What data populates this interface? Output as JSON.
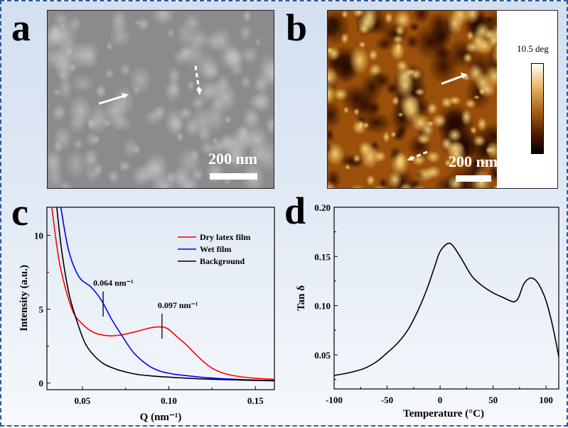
{
  "panels": {
    "a": {
      "label": "a",
      "scale_text": "200 nm"
    },
    "b": {
      "label": "b",
      "scale_text": "200 nm",
      "colorbar_label": "10.5 deg"
    },
    "c": {
      "label": "c"
    },
    "d": {
      "label": "d"
    }
  },
  "colors": {
    "border": "#2d5aa0",
    "dry": "#ff0000",
    "wet": "#0000ff",
    "background": "#000000"
  },
  "chart_data": [
    {
      "panel": "c",
      "type": "line",
      "xlabel": "Q (nm⁻¹)",
      "ylabel": "Intensity (a.u.)",
      "xlim": [
        0.0295,
        0.161
      ],
      "ylim": [
        -0.45,
        11.9
      ],
      "xticks": [
        0.05,
        0.1,
        0.15
      ],
      "xtick_labels": [
        "0.05",
        "0.10",
        "0.15"
      ],
      "yticks": [
        0,
        5,
        10
      ],
      "ytick_labels": [
        "0",
        "5",
        "10"
      ],
      "legend_position": "top-right",
      "series": [
        {
          "name": "Dry latex film",
          "color": "#ff0000",
          "x": [
            0.0322,
            0.037,
            0.044,
            0.05,
            0.057,
            0.065,
            0.072,
            0.08,
            0.088,
            0.094,
            0.099,
            0.105,
            0.11,
            0.115,
            0.12,
            0.125,
            0.132,
            0.14,
            0.15,
            0.161
          ],
          "y": [
            12,
            8,
            5,
            4,
            3.4,
            3.2,
            3.25,
            3.45,
            3.7,
            3.8,
            3.7,
            3.1,
            2.6,
            2.0,
            1.45,
            1.0,
            0.65,
            0.45,
            0.32,
            0.25
          ]
        },
        {
          "name": "Wet film",
          "color": "#0000ff",
          "x": [
            0.0374,
            0.042,
            0.048,
            0.055,
            0.061,
            0.067,
            0.074,
            0.08,
            0.088,
            0.095,
            0.103,
            0.11,
            0.12,
            0.13,
            0.145,
            0.161
          ],
          "y": [
            12,
            9,
            7.2,
            6.5,
            5.6,
            4.3,
            3.0,
            2.0,
            1.2,
            0.8,
            0.6,
            0.5,
            0.38,
            0.3,
            0.22,
            0.17
          ]
        },
        {
          "name": "Background",
          "color": "#000000",
          "x": [
            0.0351,
            0.038,
            0.042,
            0.046,
            0.052,
            0.06,
            0.068,
            0.08,
            0.09,
            0.1,
            0.115,
            0.13,
            0.145,
            0.161
          ],
          "y": [
            12,
            9,
            6.2,
            4.5,
            2.6,
            1.5,
            1.0,
            0.62,
            0.48,
            0.4,
            0.3,
            0.24,
            0.19,
            0.15
          ]
        }
      ],
      "annotations": [
        {
          "text": "0.064 nm⁻¹",
          "x": 0.062,
          "y_range": [
            4.5,
            6.2
          ]
        },
        {
          "text": "0.097 nm⁻¹",
          "x": 0.096,
          "y_range": [
            3.0,
            4.7
          ]
        }
      ]
    },
    {
      "panel": "d",
      "type": "line",
      "xlabel": "Temperature (°C)",
      "ylabel": "Tan δ",
      "xlim": [
        -100,
        112
      ],
      "ylim": [
        0.0153,
        0.2
      ],
      "xticks": [
        -100,
        -50,
        0,
        50,
        100
      ],
      "xtick_labels": [
        "-100",
        "-50",
        "0",
        "50",
        "100"
      ],
      "yticks": [
        0.05,
        0.1,
        0.15,
        0.2
      ],
      "ytick_labels": [
        "0.05",
        "0.10",
        "0.15",
        "0.20"
      ],
      "series": [
        {
          "color": "#000000",
          "x": [
            -100,
            -85,
            -72,
            -60,
            -50,
            -40,
            -30,
            -20,
            -12,
            -5,
            0,
            7,
            12,
            20,
            30,
            40,
            50,
            60,
            66,
            70,
            74,
            79,
            85,
            90,
            95,
            100,
            105,
            109,
            112
          ],
          "y": [
            0.029,
            0.032,
            0.036,
            0.043,
            0.052,
            0.062,
            0.076,
            0.097,
            0.118,
            0.14,
            0.155,
            0.163,
            0.161,
            0.148,
            0.13,
            0.12,
            0.113,
            0.108,
            0.105,
            0.104,
            0.108,
            0.122,
            0.128,
            0.126,
            0.118,
            0.105,
            0.085,
            0.065,
            0.048
          ]
        }
      ]
    }
  ]
}
